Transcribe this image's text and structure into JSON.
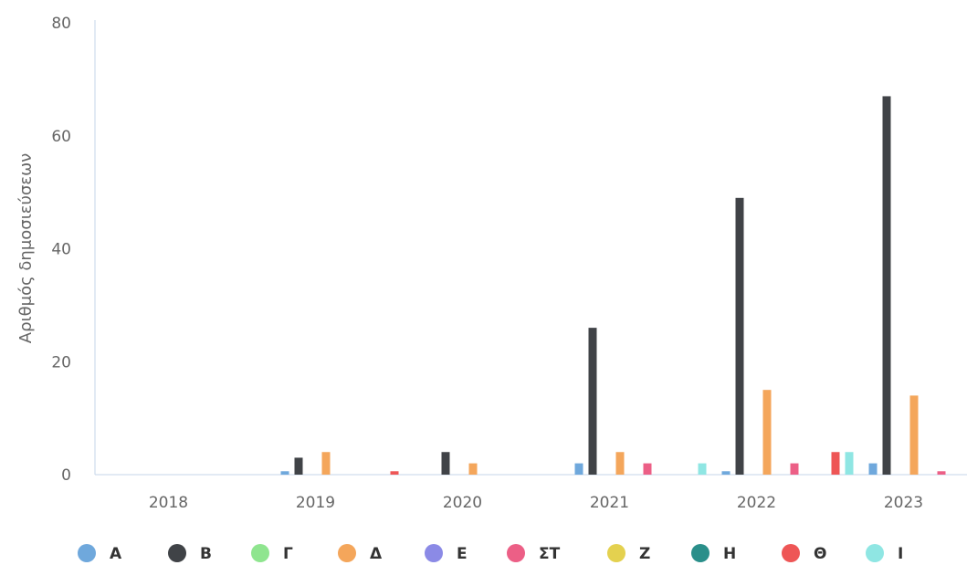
{
  "chart_data": {
    "type": "bar",
    "title": "",
    "xlabel": "",
    "ylabel": "Αριθμός δημοσιεύσεων",
    "categories": [
      "2018",
      "2019",
      "2020",
      "2021",
      "2022",
      "2023"
    ],
    "ylim": [
      0,
      80
    ],
    "yticks": [
      0,
      20,
      40,
      60,
      80
    ],
    "grid": false,
    "legend_position": "bottom",
    "series": [
      {
        "name": "Α",
        "color": "#6fa8dc",
        "values": [
          0,
          0.6,
          0,
          2,
          0.6,
          2
        ]
      },
      {
        "name": "Β",
        "color": "#404347",
        "values": [
          0,
          3,
          4,
          26,
          49,
          67
        ]
      },
      {
        "name": "Γ",
        "color": "#8fe58f",
        "values": [
          0,
          0,
          0,
          0,
          0,
          0
        ]
      },
      {
        "name": "Δ",
        "color": "#f4a65b",
        "values": [
          0,
          4,
          2,
          4,
          15,
          14
        ]
      },
      {
        "name": "Ε",
        "color": "#8b8ae6",
        "values": [
          0,
          0,
          0,
          0,
          0,
          0
        ]
      },
      {
        "name": "ΣΤ",
        "color": "#ec5f86",
        "values": [
          0,
          0,
          0,
          2,
          2,
          0.6
        ]
      },
      {
        "name": "Ζ",
        "color": "#e4d14f",
        "values": [
          0,
          0,
          0,
          0,
          0,
          0
        ]
      },
      {
        "name": "Η",
        "color": "#2a8f8a",
        "values": [
          0,
          0,
          0,
          0,
          0,
          0
        ]
      },
      {
        "name": "Θ",
        "color": "#ee5656",
        "values": [
          0,
          0.6,
          0,
          0,
          4,
          0.6
        ]
      },
      {
        "name": "Ι",
        "color": "#8fe6e3",
        "values": [
          0,
          0,
          0,
          2,
          4,
          0
        ]
      }
    ]
  }
}
